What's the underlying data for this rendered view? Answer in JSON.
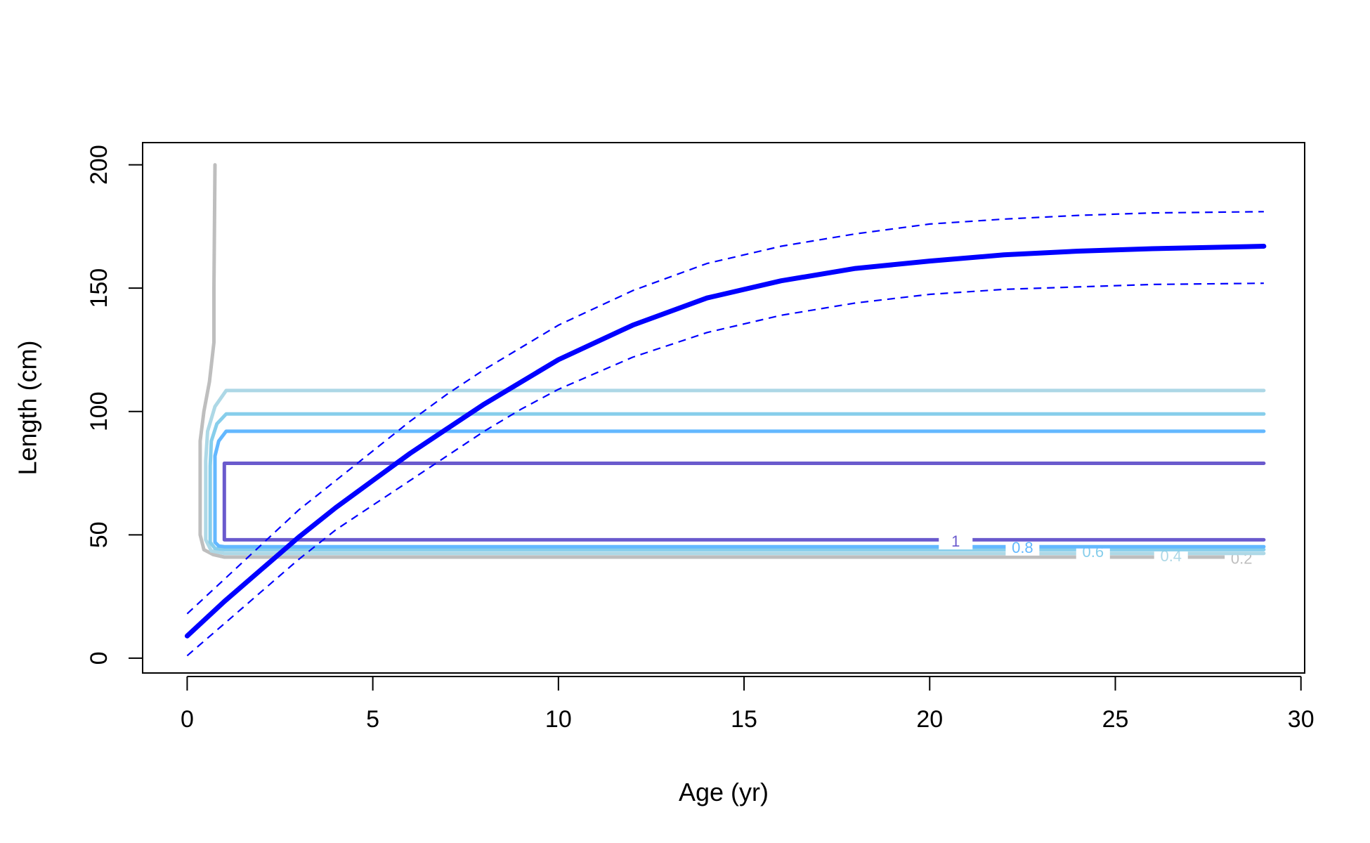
{
  "chart_data": {
    "type": "line",
    "xlabel": "Age (yr)",
    "ylabel": "Length (cm)",
    "xlim": [
      -1.2,
      30.1
    ],
    "ylim": [
      -6,
      209
    ],
    "x_ticks": [
      0,
      5,
      10,
      15,
      20,
      25,
      30
    ],
    "y_ticks": [
      0,
      50,
      100,
      150,
      200
    ],
    "grid": false,
    "legend": "none",
    "series": [
      {
        "role": "mean",
        "style": "solid-thick",
        "color": "#0000ff",
        "x": [
          0,
          1,
          2,
          3,
          4,
          5,
          6,
          7,
          8,
          9,
          10,
          12,
          14,
          16,
          18,
          20,
          22,
          24,
          26,
          29
        ],
        "y": [
          9,
          23,
          36,
          49,
          61,
          72,
          83,
          93,
          103,
          112,
          121,
          135,
          146,
          153,
          158,
          161,
          163.5,
          165,
          166,
          167
        ]
      },
      {
        "role": "upper",
        "style": "dashed",
        "color": "#0000ff",
        "x": [
          0,
          1,
          2,
          3,
          4,
          5,
          6,
          7,
          8,
          9,
          10,
          12,
          14,
          16,
          18,
          20,
          22,
          24,
          26,
          29
        ],
        "y": [
          18,
          32,
          46,
          60,
          72,
          84,
          96,
          107,
          117,
          126,
          135,
          149,
          160,
          167,
          172,
          176,
          178,
          179.5,
          180.5,
          181
        ]
      },
      {
        "role": "lower",
        "style": "dashed",
        "color": "#0000ff",
        "x": [
          0,
          1,
          2,
          3,
          4,
          5,
          6,
          7,
          8,
          9,
          10,
          12,
          14,
          16,
          18,
          20,
          22,
          24,
          26,
          29
        ],
        "y": [
          1,
          14,
          27,
          40,
          52,
          62,
          72,
          82,
          92,
          101,
          109,
          122,
          132,
          139,
          144,
          147.5,
          149.5,
          150.5,
          151.5,
          152
        ]
      }
    ],
    "contours": [
      {
        "label": "0.2",
        "color": "#bebebe",
        "label_x": 28.4,
        "label_y": 40.5,
        "points": [
          [
            0.75,
            200
          ],
          [
            0.72,
            150
          ],
          [
            0.72,
            128
          ],
          [
            0.6,
            112
          ],
          [
            0.45,
            100
          ],
          [
            0.35,
            88
          ],
          [
            0.35,
            50
          ],
          [
            0.45,
            44
          ],
          [
            0.7,
            42
          ],
          [
            1.0,
            41
          ],
          [
            28.0,
            41
          ],
          [
            28.8,
            41
          ]
        ]
      },
      {
        "label": "0.4",
        "color": "#add8e6",
        "label_x": 26.5,
        "label_y": 41.5,
        "points": [
          [
            29,
            108.5
          ],
          [
            1.05,
            108.5
          ],
          [
            0.75,
            102
          ],
          [
            0.55,
            92
          ],
          [
            0.5,
            80
          ],
          [
            0.5,
            48
          ],
          [
            0.65,
            43.5
          ],
          [
            1.0,
            42.5
          ],
          [
            26.0,
            42.5
          ],
          [
            27.0,
            42.5
          ],
          [
            29,
            42.5
          ]
        ]
      },
      {
        "label": "0.6",
        "color": "#87ceeb",
        "label_x": 24.4,
        "label_y": 43.2,
        "points": [
          [
            29,
            99
          ],
          [
            1.05,
            99
          ],
          [
            0.8,
            95
          ],
          [
            0.65,
            88
          ],
          [
            0.62,
            78
          ],
          [
            0.62,
            47
          ],
          [
            0.75,
            44.5
          ],
          [
            1.0,
            44
          ],
          [
            23.9,
            44
          ],
          [
            24.9,
            44
          ],
          [
            29,
            44
          ]
        ]
      },
      {
        "label": "0.8",
        "color": "#63b8ff",
        "label_x": 22.5,
        "label_y": 45,
        "points": [
          [
            29,
            92
          ],
          [
            1.05,
            92
          ],
          [
            0.85,
            88
          ],
          [
            0.75,
            82
          ],
          [
            0.75,
            47
          ],
          [
            0.85,
            45.5
          ],
          [
            1.0,
            45.2
          ],
          [
            22.0,
            45.2
          ],
          [
            23.0,
            45.2
          ],
          [
            29,
            45.2
          ]
        ]
      },
      {
        "label": "1",
        "color": "#6a5acd",
        "label_x": 20.7,
        "label_y": 47.5,
        "points": [
          [
            29,
            79
          ],
          [
            1.0,
            79
          ],
          [
            1.0,
            48
          ],
          [
            20.5,
            48
          ],
          [
            21.0,
            48
          ],
          [
            29,
            48
          ]
        ]
      }
    ]
  }
}
